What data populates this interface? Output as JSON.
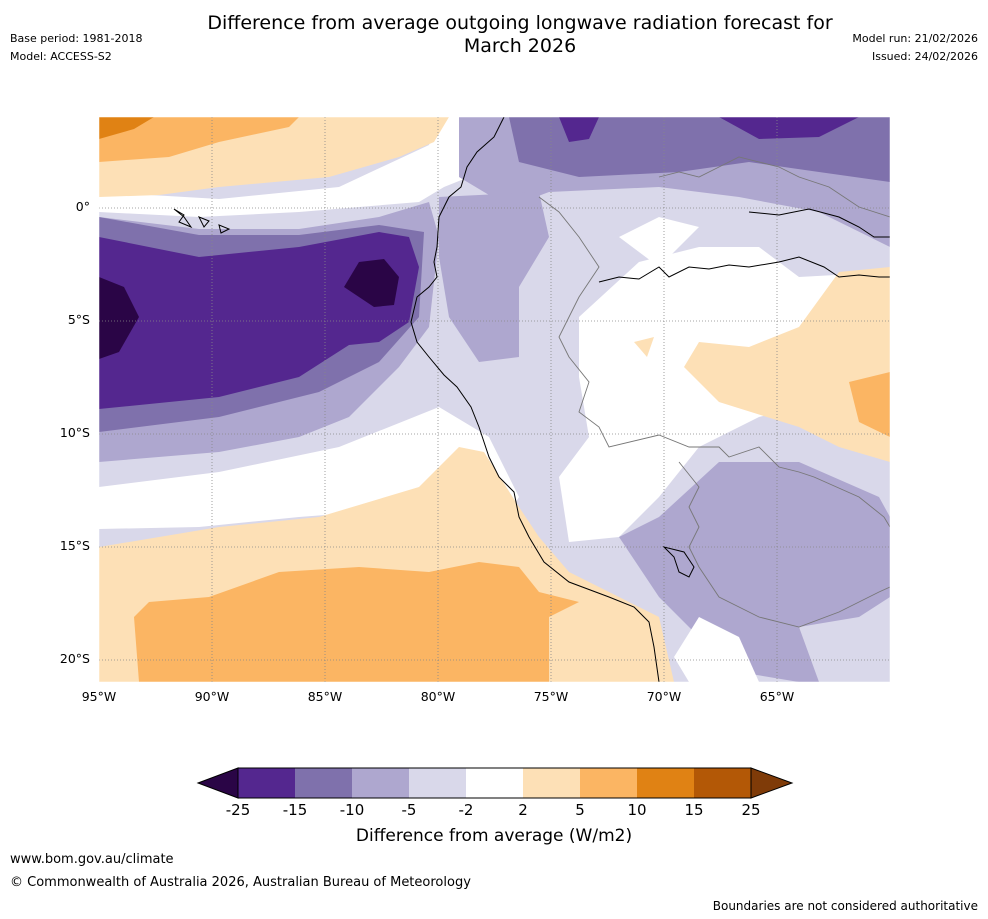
{
  "title_line1": "Difference from average outgoing longwave radiation forecast for",
  "title_line2": "March 2026",
  "base_period": "Base period: 1981-2018",
  "model": "Model: ACCESS-S2",
  "model_run": "Model run: 21/02/2026",
  "issued": "Issued: 24/02/2026",
  "map": {
    "lat_labels": [
      "0°",
      "5°S",
      "10°S",
      "15°S",
      "20°S"
    ],
    "lon_labels": [
      "95°W",
      "90°W",
      "85°W",
      "80°W",
      "75°W",
      "70°W",
      "65°W"
    ]
  },
  "colorbar": {
    "ticks": [
      "-25",
      "-15",
      "-10",
      "-5",
      "-2",
      "2",
      "5",
      "10",
      "15",
      "25"
    ],
    "colors": [
      "#2a0546",
      "#54278f",
      "#7f71ac",
      "#aea7cf",
      "#d9d8ea",
      "#ffffff",
      "#fde0b6",
      "#fbb563",
      "#e08214",
      "#b35806",
      "#7f3b08"
    ],
    "label": "Difference from average (W/m2)"
  },
  "footer": {
    "url": "www.bom.gov.au/climate",
    "copyright": "© Commonwealth of Australia 2026, Australian Bureau of Meteorology",
    "disclaimer": "Boundaries are not considered authoritative"
  }
}
